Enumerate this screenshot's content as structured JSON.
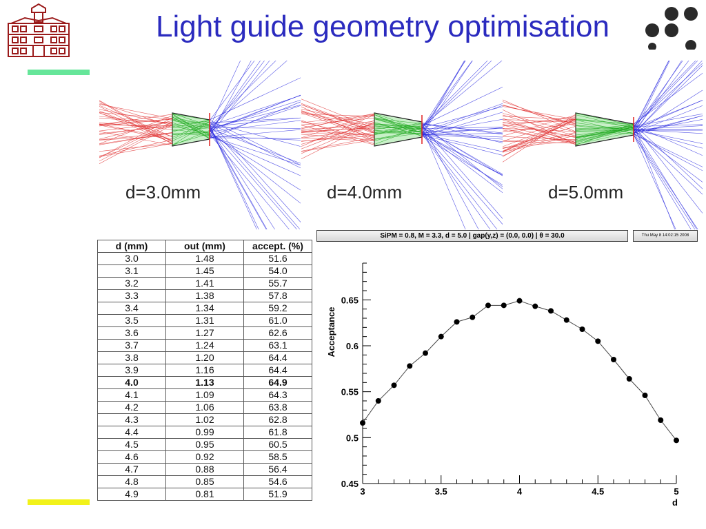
{
  "slide": {
    "title": "Light guide geometry optimisation"
  },
  "simulations": [
    {
      "label": "d=3.0mm",
      "d": 3.0
    },
    {
      "label": "d=4.0mm",
      "d": 4.0
    },
    {
      "label": "d=5.0mm",
      "d": 5.0
    }
  ],
  "table": {
    "headers": [
      "d (mm)",
      "out (mm)",
      "accept. (%)"
    ],
    "bold_row": "4.0",
    "rows": [
      [
        "3.0",
        "1.48",
        "51.6"
      ],
      [
        "3.1",
        "1.45",
        "54.0"
      ],
      [
        "3.2",
        "1.41",
        "55.7"
      ],
      [
        "3.3",
        "1.38",
        "57.8"
      ],
      [
        "3.4",
        "1.34",
        "59.2"
      ],
      [
        "3.5",
        "1.31",
        "61.0"
      ],
      [
        "3.6",
        "1.27",
        "62.6"
      ],
      [
        "3.7",
        "1.24",
        "63.1"
      ],
      [
        "3.8",
        "1.20",
        "64.4"
      ],
      [
        "3.9",
        "1.16",
        "64.4"
      ],
      [
        "4.0",
        "1.13",
        "64.9"
      ],
      [
        "4.1",
        "1.09",
        "64.3"
      ],
      [
        "4.2",
        "1.06",
        "63.8"
      ],
      [
        "4.3",
        "1.02",
        "62.8"
      ],
      [
        "4.4",
        "0.99",
        "61.8"
      ],
      [
        "4.5",
        "0.95",
        "60.5"
      ],
      [
        "4.6",
        "0.92",
        "58.5"
      ],
      [
        "4.7",
        "0.88",
        "56.4"
      ],
      [
        "4.8",
        "0.85",
        "54.6"
      ],
      [
        "4.9",
        "0.81",
        "51.9"
      ]
    ]
  },
  "plot_header": {
    "status": "SiPM = 0.8, M = 3.3, d = 5.0 | gap(y,z) = (0.0, 0.0) | θ = 30.0",
    "date": "Thu May  8 14:02:15 2008"
  },
  "chart_data": {
    "type": "line",
    "xlabel": "d",
    "ylabel": "Acceptance",
    "xlim": [
      3,
      5
    ],
    "ylim": [
      0.45,
      0.69
    ],
    "xticks": [
      "3",
      "3.5",
      "4",
      "4.5",
      "5"
    ],
    "yticks": [
      "0.45",
      "0.5",
      "0.55",
      "0.6",
      "0.65"
    ],
    "x": [
      3.0,
      3.1,
      3.2,
      3.3,
      3.4,
      3.5,
      3.6,
      3.7,
      3.8,
      3.9,
      4.0,
      4.1,
      4.2,
      4.3,
      4.4,
      4.5,
      4.6,
      4.7,
      4.8,
      4.9,
      5.0
    ],
    "y": [
      0.516,
      0.54,
      0.557,
      0.578,
      0.592,
      0.61,
      0.626,
      0.631,
      0.644,
      0.644,
      0.649,
      0.643,
      0.638,
      0.628,
      0.618,
      0.605,
      0.585,
      0.564,
      0.546,
      0.519,
      0.497
    ],
    "grid": false,
    "marker_color": "#000000",
    "line_color": "#444444"
  },
  "colors": {
    "title": "#2b2bbf",
    "accent_green": "#66e69a",
    "accent_yellow": "#f2f21a",
    "ray_in": "#e03030",
    "ray_guide": "#22aa22",
    "ray_out": "#2a2ae0",
    "guide_fill": "#c8f0c8"
  }
}
